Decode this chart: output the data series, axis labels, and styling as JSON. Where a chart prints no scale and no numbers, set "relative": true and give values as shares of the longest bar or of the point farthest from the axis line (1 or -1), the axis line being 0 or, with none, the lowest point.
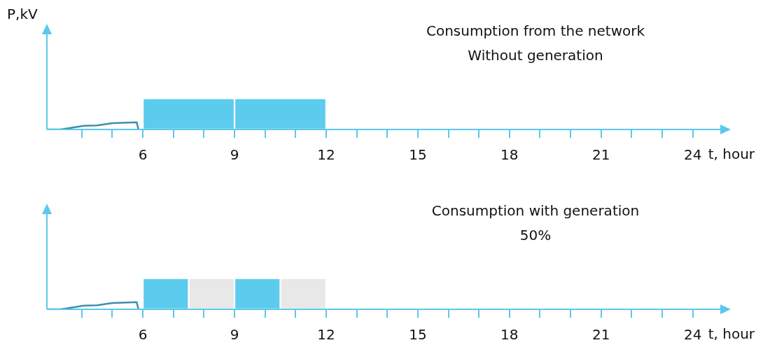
{
  "chart_data": [
    {
      "type": "bar",
      "title": "Consumption from the network",
      "subtitle": "Without generation",
      "xlabel": "t, hour",
      "ylabel": "P,kV",
      "relative": true,
      "xlim": [
        2.86,
        24.9
      ],
      "xticks": [
        {
          "value": 4,
          "label": null
        },
        {
          "value": 5,
          "label": null
        },
        6,
        {
          "value": 7,
          "label": null
        },
        {
          "value": 8,
          "label": null
        },
        9,
        {
          "value": 10,
          "label": null
        },
        {
          "value": 11,
          "label": null
        },
        12,
        {
          "value": 13,
          "label": null
        },
        {
          "value": 14,
          "label": null
        },
        15,
        {
          "value": 16,
          "label": null
        },
        {
          "value": 17,
          "label": null
        },
        18,
        {
          "value": 19,
          "label": null
        },
        {
          "value": 20,
          "label": null
        },
        21,
        {
          "value": 22,
          "label": null
        },
        {
          "value": 23,
          "label": null
        },
        24
      ],
      "series": [
        {
          "type": "line",
          "color": "#3f8fa8",
          "x": [
            2.86,
            3.3,
            3.5,
            4.07,
            4.5,
            5.0,
            5.5,
            5.8,
            5.85
          ],
          "values": [
            0,
            0,
            0.03,
            0.12,
            0.13,
            0.2,
            0.22,
            0.23,
            0.02
          ]
        },
        {
          "type": "bar",
          "x": [
            7.5,
            10.5
          ],
          "values": [
            1,
            1
          ],
          "colors": [
            "#5bcbee",
            "#5bcbee"
          ]
        }
      ]
    },
    {
      "type": "bar",
      "title": "Consumption with generation",
      "subtitle": "50%",
      "xlabel": "t, hour",
      "relative": true,
      "xlim": [
        2.86,
        24.9
      ],
      "xticks": [
        {
          "value": 4,
          "label": null
        },
        {
          "value": 5,
          "label": null
        },
        6,
        {
          "value": 7,
          "label": null
        },
        {
          "value": 8,
          "label": null
        },
        9,
        {
          "value": 10,
          "label": null
        },
        {
          "value": 11,
          "label": null
        },
        12,
        {
          "value": 13,
          "label": null
        },
        {
          "value": 14,
          "label": null
        },
        15,
        {
          "value": 16,
          "label": null
        },
        {
          "value": 17,
          "label": null
        },
        18,
        {
          "value": 19,
          "label": null
        },
        {
          "value": 20,
          "label": null
        },
        21,
        {
          "value": 22,
          "label": null
        },
        {
          "value": 23,
          "label": null
        },
        24
      ],
      "series": [
        {
          "type": "line",
          "color": "#3f8fa8",
          "x": [
            2.86,
            3.3,
            3.5,
            4.07,
            4.5,
            5.0,
            5.5,
            5.8,
            5.85
          ],
          "values": [
            0,
            0,
            0.03,
            0.12,
            0.13,
            0.2,
            0.22,
            0.23,
            0.02
          ]
        },
        {
          "type": "bar",
          "x": [
            6.75,
            8.25,
            9.75,
            11.25
          ],
          "values": [
            1,
            1,
            1,
            1
          ],
          "colors": [
            "#5bcbee",
            "#e8e8e8",
            "#5bcbee",
            "#e8e8e8"
          ]
        }
      ]
    }
  ]
}
